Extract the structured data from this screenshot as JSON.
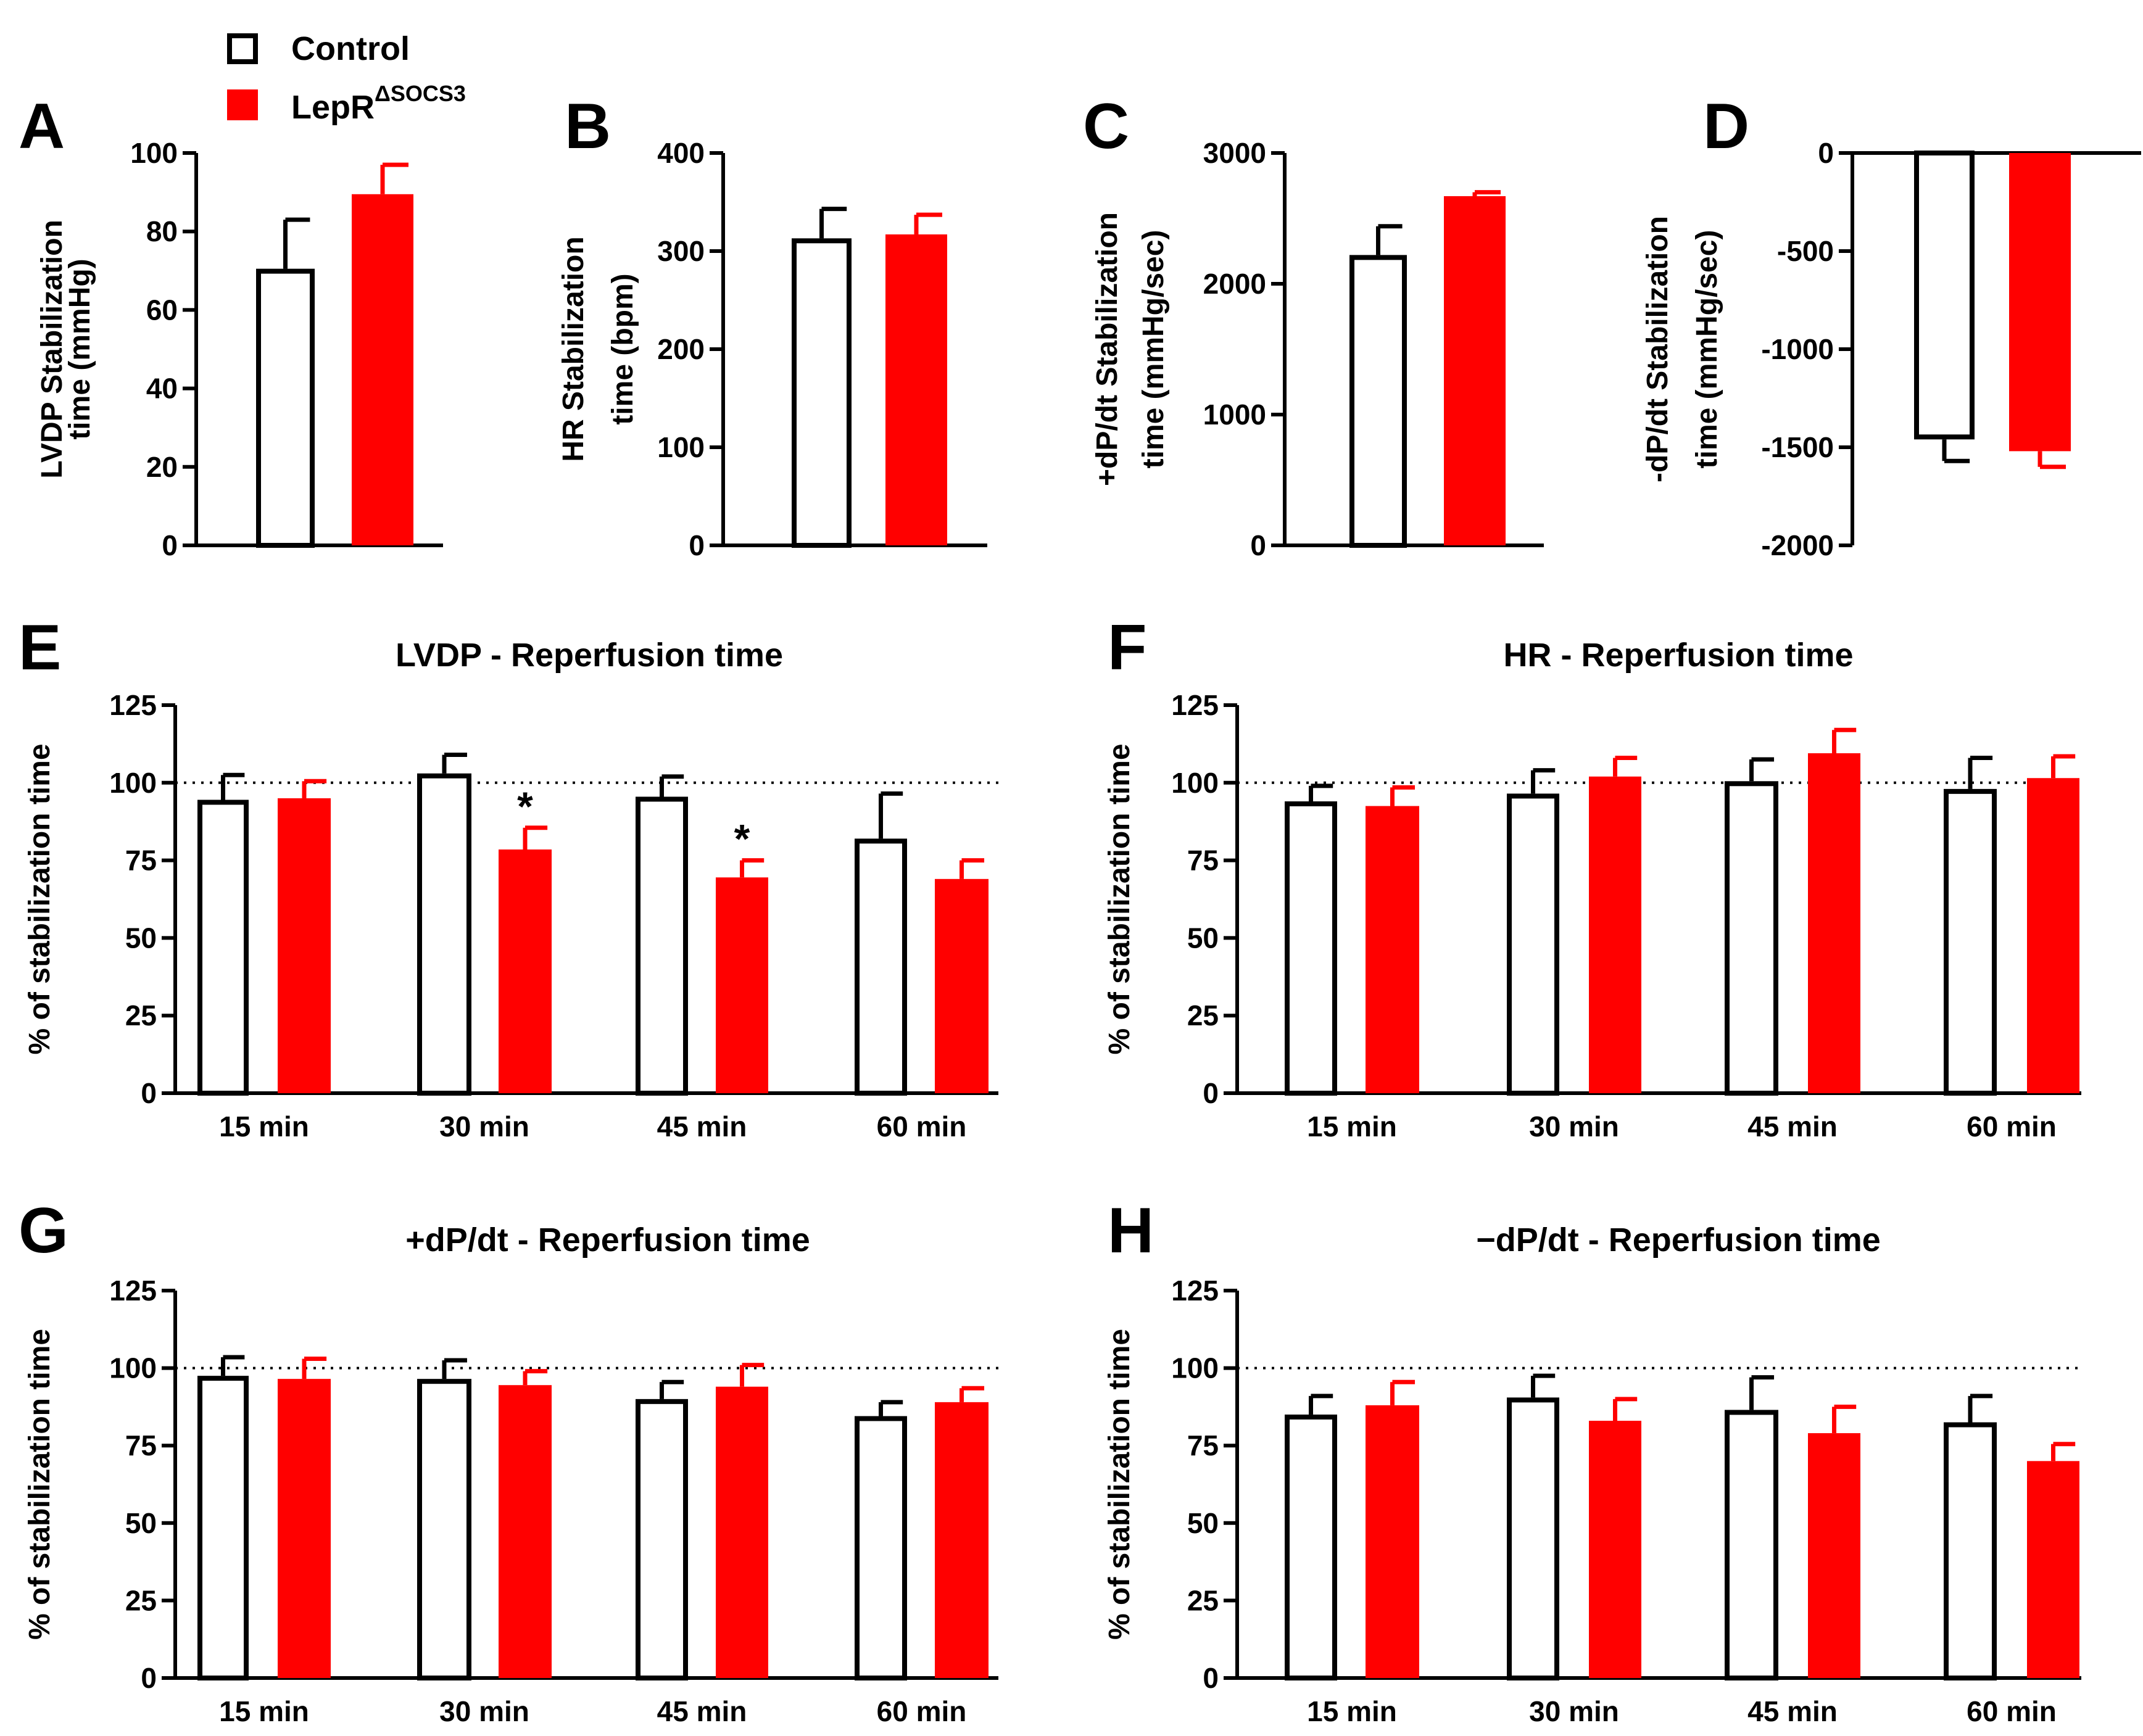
{
  "legend": {
    "control_label": "Control",
    "lepr_label": "LepR",
    "lepr_superscript": "ΔSOCS3"
  },
  "colors": {
    "control": "#ffffff",
    "lepr": "#ff0000",
    "stroke": "#000000"
  },
  "chart_data": [
    {
      "panel": "A",
      "type": "bar",
      "ylabel": [
        "LVDP Stabilization",
        "time (mmHg)"
      ],
      "ylim": [
        0,
        100
      ],
      "yticks": [
        0,
        20,
        40,
        60,
        80,
        100
      ],
      "series": [
        {
          "name": "Control",
          "values": [
            70.5
          ],
          "errors": [
            12.5
          ]
        },
        {
          "name": "LepRΔSOCS3",
          "values": [
            89.5
          ],
          "errors": [
            7.5
          ]
        }
      ]
    },
    {
      "panel": "B",
      "type": "bar",
      "ylabel": [
        "HR Stabilization",
        "time (bpm)"
      ],
      "ylim": [
        0,
        400
      ],
      "yticks": [
        0,
        100,
        200,
        300,
        400
      ],
      "series": [
        {
          "name": "Control",
          "values": [
            313
          ],
          "errors": [
            30
          ]
        },
        {
          "name": "LepRΔSOCS3",
          "values": [
            317
          ],
          "errors": [
            20
          ]
        }
      ]
    },
    {
      "panel": "C",
      "type": "bar",
      "ylabel": [
        "+dP/dt Stabilization",
        "time (mmHg/sec)"
      ],
      "ylim": [
        0,
        3000
      ],
      "yticks": [
        0,
        1000,
        2000,
        3000
      ],
      "series": [
        {
          "name": "Control",
          "values": [
            2220
          ],
          "errors": [
            220
          ]
        },
        {
          "name": "LepRΔSOCS3",
          "values": [
            2670
          ],
          "errors": [
            30
          ]
        }
      ]
    },
    {
      "panel": "D",
      "type": "bar",
      "ylabel": [
        "-dP/dt Stabilization",
        "time (mmHg/sec)"
      ],
      "ylim": [
        -2000,
        0
      ],
      "yticks": [
        0,
        -500,
        -1000,
        -1500,
        -2000
      ],
      "series": [
        {
          "name": "Control",
          "values": [
            -1460
          ],
          "errors": [
            110
          ]
        },
        {
          "name": "LepRΔSOCS3",
          "values": [
            -1520
          ],
          "errors": [
            80
          ]
        }
      ]
    },
    {
      "panel": "E",
      "type": "bar",
      "title": "LVDP - Reperfusion time",
      "ylabel": [
        "% of stabilization time"
      ],
      "ylim": [
        0,
        125
      ],
      "yticks": [
        0,
        25,
        50,
        75,
        100,
        125
      ],
      "reference_line": 100,
      "categories": [
        "15 min",
        "30 min",
        "45 min",
        "60 min"
      ],
      "series": [
        {
          "name": "Control",
          "values": [
            94.5,
            103,
            95.5,
            82
          ],
          "errors": [
            8,
            6,
            6.5,
            14.5
          ]
        },
        {
          "name": "LepRΔSOCS3",
          "values": [
            95,
            78.5,
            69.5,
            69
          ],
          "errors": [
            5.5,
            7,
            5.5,
            6
          ]
        }
      ],
      "annotations": [
        {
          "text": "*",
          "category": "30 min",
          "series": "LepRΔSOCS3"
        },
        {
          "text": "*",
          "category": "45 min",
          "series": "LepRΔSOCS3"
        }
      ]
    },
    {
      "panel": "F",
      "type": "bar",
      "title": "HR - Reperfusion time",
      "ylabel": [
        "% of stabilization time"
      ],
      "ylim": [
        0,
        125
      ],
      "yticks": [
        0,
        25,
        50,
        75,
        100,
        125
      ],
      "reference_line": 100,
      "categories": [
        "15 min",
        "30 min",
        "45 min",
        "60 min"
      ],
      "series": [
        {
          "name": "Control",
          "values": [
            94,
            96.5,
            100.5,
            98
          ],
          "errors": [
            5,
            7.5,
            7,
            10
          ]
        },
        {
          "name": "LepRΔSOCS3",
          "values": [
            92.5,
            102,
            109.5,
            101.5
          ],
          "errors": [
            6,
            6,
            7.5,
            7
          ]
        }
      ]
    },
    {
      "panel": "G",
      "type": "bar",
      "title": "+dP/dt - Reperfusion time",
      "ylabel": [
        "% of stabilization time"
      ],
      "ylim": [
        0,
        125
      ],
      "yticks": [
        0,
        25,
        50,
        75,
        100,
        125
      ],
      "reference_line": 100,
      "categories": [
        "15 min",
        "30 min",
        "45 min",
        "60 min"
      ],
      "series": [
        {
          "name": "Control",
          "values": [
            97.5,
            96.5,
            90,
            84.5
          ],
          "errors": [
            6,
            6,
            5.5,
            4.5
          ]
        },
        {
          "name": "LepRΔSOCS3",
          "values": [
            96.5,
            94.5,
            94,
            89
          ],
          "errors": [
            6.5,
            4.5,
            7,
            4.5
          ]
        }
      ]
    },
    {
      "panel": "H",
      "type": "bar",
      "title": "−dP/dt - Reperfusion time",
      "ylabel": [
        "% of stabilization time"
      ],
      "ylim": [
        0,
        125
      ],
      "yticks": [
        0,
        25,
        50,
        75,
        100,
        125
      ],
      "reference_line": 100,
      "categories": [
        "15 min",
        "30 min",
        "45 min",
        "60 min"
      ],
      "series": [
        {
          "name": "Control",
          "values": [
            85,
            90.5,
            86.5,
            82.5
          ],
          "errors": [
            6,
            7,
            10.5,
            8.5
          ]
        },
        {
          "name": "LepRΔSOCS3",
          "values": [
            88,
            83,
            79,
            70
          ],
          "errors": [
            7.5,
            7,
            8.5,
            5.5
          ]
        }
      ]
    }
  ]
}
